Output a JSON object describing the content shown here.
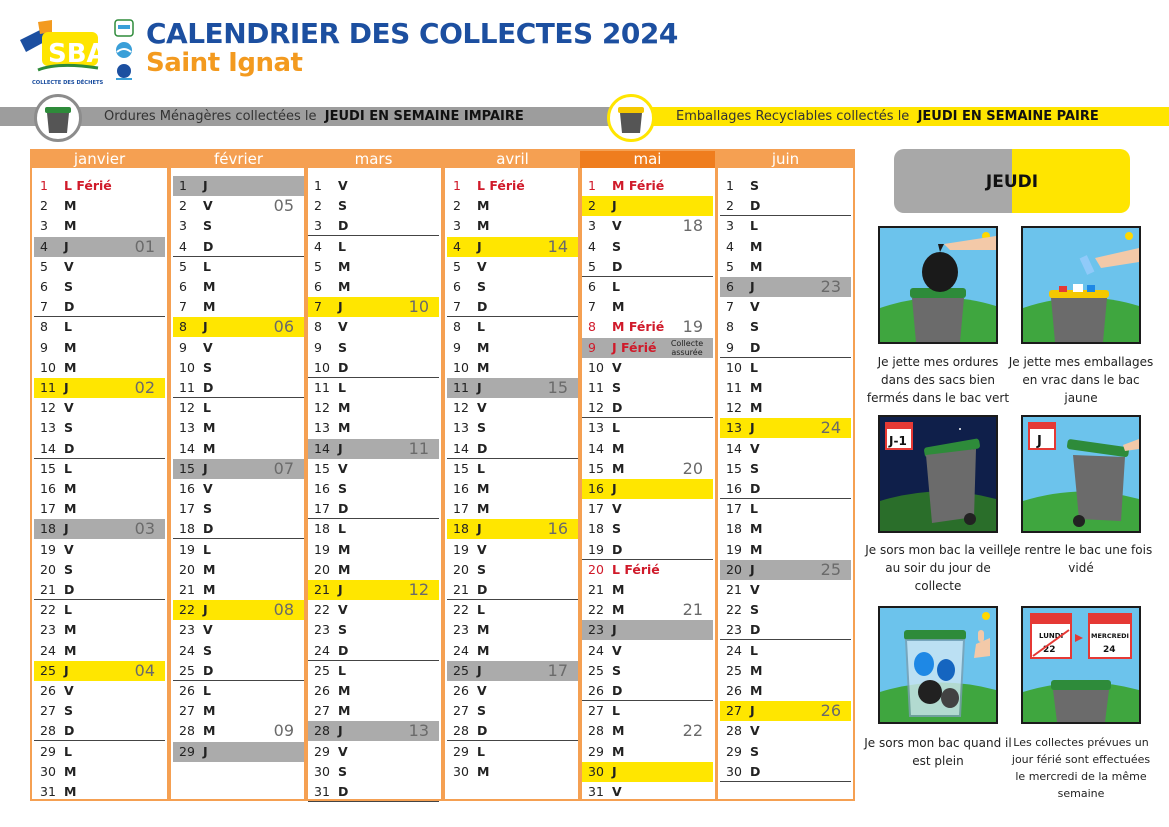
{
  "header": {
    "title": "CALENDRIER DES COLLECTES 2024",
    "subtitle": "Saint Ignat",
    "logo_text": "SBA",
    "logo_tagline": "COLLECTE DES DÉCHETS"
  },
  "banner": {
    "left_text": "Ordures Ménagères collectées le",
    "left_bold": "JEUDI EN SEMAINE IMPAIRE",
    "right_text": "Emballages Recyclables collectés le",
    "right_bold": "JEUDI EN SEMAINE PAIRE"
  },
  "colors": {
    "title_blue": "#1c4fa0",
    "subtitle_orange": "#f39a1f",
    "month_border": "#f5a052",
    "grey_collection": "#ababab",
    "yellow_collection": "#ffe600",
    "ferie_red": "#d01a2a",
    "bin_lid_green": "#2e8b3a"
  },
  "months": [
    {
      "name": "janvier",
      "days": [
        {
          "n": "1",
          "l": "L",
          "ferie": "Férié"
        },
        {
          "n": "2",
          "l": "M"
        },
        {
          "n": "3",
          "l": "M"
        },
        {
          "n": "4",
          "l": "J",
          "hl": "grey",
          "week": "01"
        },
        {
          "n": "5",
          "l": "V"
        },
        {
          "n": "6",
          "l": "S"
        },
        {
          "n": "7",
          "l": "D"
        },
        {
          "n": "8",
          "l": "L"
        },
        {
          "n": "9",
          "l": "M"
        },
        {
          "n": "10",
          "l": "M"
        },
        {
          "n": "11",
          "l": "J",
          "hl": "yellow",
          "week": "02"
        },
        {
          "n": "12",
          "l": "V"
        },
        {
          "n": "13",
          "l": "S"
        },
        {
          "n": "14",
          "l": "D"
        },
        {
          "n": "15",
          "l": "L"
        },
        {
          "n": "16",
          "l": "M"
        },
        {
          "n": "17",
          "l": "M"
        },
        {
          "n": "18",
          "l": "J",
          "hl": "grey",
          "week": "03"
        },
        {
          "n": "19",
          "l": "V"
        },
        {
          "n": "20",
          "l": "S"
        },
        {
          "n": "21",
          "l": "D"
        },
        {
          "n": "22",
          "l": "L"
        },
        {
          "n": "23",
          "l": "M"
        },
        {
          "n": "24",
          "l": "M"
        },
        {
          "n": "25",
          "l": "J",
          "hl": "yellow",
          "week": "04"
        },
        {
          "n": "26",
          "l": "V"
        },
        {
          "n": "27",
          "l": "S"
        },
        {
          "n": "28",
          "l": "D"
        },
        {
          "n": "29",
          "l": "L"
        },
        {
          "n": "30",
          "l": "M"
        },
        {
          "n": "31",
          "l": "M"
        }
      ]
    },
    {
      "name": "février",
      "days": [
        {
          "n": "1",
          "l": "J",
          "hl": "grey"
        },
        {
          "n": "2",
          "l": "V",
          "week": "05"
        },
        {
          "n": "3",
          "l": "S"
        },
        {
          "n": "4",
          "l": "D"
        },
        {
          "n": "5",
          "l": "L"
        },
        {
          "n": "6",
          "l": "M"
        },
        {
          "n": "7",
          "l": "M"
        },
        {
          "n": "8",
          "l": "J",
          "hl": "yellow",
          "week": "06"
        },
        {
          "n": "9",
          "l": "V"
        },
        {
          "n": "10",
          "l": "S"
        },
        {
          "n": "11",
          "l": "D"
        },
        {
          "n": "12",
          "l": "L"
        },
        {
          "n": "13",
          "l": "M"
        },
        {
          "n": "14",
          "l": "M"
        },
        {
          "n": "15",
          "l": "J",
          "hl": "grey",
          "week": "07"
        },
        {
          "n": "16",
          "l": "V"
        },
        {
          "n": "17",
          "l": "S"
        },
        {
          "n": "18",
          "l": "D"
        },
        {
          "n": "19",
          "l": "L"
        },
        {
          "n": "20",
          "l": "M"
        },
        {
          "n": "21",
          "l": "M"
        },
        {
          "n": "22",
          "l": "J",
          "hl": "yellow",
          "week": "08"
        },
        {
          "n": "23",
          "l": "V"
        },
        {
          "n": "24",
          "l": "S"
        },
        {
          "n": "25",
          "l": "D"
        },
        {
          "n": "26",
          "l": "L"
        },
        {
          "n": "27",
          "l": "M"
        },
        {
          "n": "28",
          "l": "M",
          "week": "09"
        },
        {
          "n": "29",
          "l": "J",
          "hl": "grey"
        }
      ]
    },
    {
      "name": "mars",
      "days": [
        {
          "n": "1",
          "l": "V"
        },
        {
          "n": "2",
          "l": "S"
        },
        {
          "n": "3",
          "l": "D"
        },
        {
          "n": "4",
          "l": "L"
        },
        {
          "n": "5",
          "l": "M"
        },
        {
          "n": "6",
          "l": "M"
        },
        {
          "n": "7",
          "l": "J",
          "hl": "yellow",
          "week": "10"
        },
        {
          "n": "8",
          "l": "V"
        },
        {
          "n": "9",
          "l": "S"
        },
        {
          "n": "10",
          "l": "D"
        },
        {
          "n": "11",
          "l": "L"
        },
        {
          "n": "12",
          "l": "M"
        },
        {
          "n": "13",
          "l": "M"
        },
        {
          "n": "14",
          "l": "J",
          "hl": "grey",
          "week": "11"
        },
        {
          "n": "15",
          "l": "V"
        },
        {
          "n": "16",
          "l": "S"
        },
        {
          "n": "17",
          "l": "D"
        },
        {
          "n": "18",
          "l": "L"
        },
        {
          "n": "19",
          "l": "M"
        },
        {
          "n": "20",
          "l": "M"
        },
        {
          "n": "21",
          "l": "J",
          "hl": "yellow",
          "week": "12"
        },
        {
          "n": "22",
          "l": "V"
        },
        {
          "n": "23",
          "l": "S"
        },
        {
          "n": "24",
          "l": "D"
        },
        {
          "n": "25",
          "l": "L"
        },
        {
          "n": "26",
          "l": "M"
        },
        {
          "n": "27",
          "l": "M"
        },
        {
          "n": "28",
          "l": "J",
          "hl": "grey",
          "week": "13"
        },
        {
          "n": "29",
          "l": "V"
        },
        {
          "n": "30",
          "l": "S"
        },
        {
          "n": "31",
          "l": "D"
        }
      ]
    },
    {
      "name": "avril",
      "days": [
        {
          "n": "1",
          "l": "L",
          "ferie": "Férié"
        },
        {
          "n": "2",
          "l": "M"
        },
        {
          "n": "3",
          "l": "M"
        },
        {
          "n": "4",
          "l": "J",
          "hl": "yellow",
          "week": "14"
        },
        {
          "n": "5",
          "l": "V"
        },
        {
          "n": "6",
          "l": "S"
        },
        {
          "n": "7",
          "l": "D"
        },
        {
          "n": "8",
          "l": "L"
        },
        {
          "n": "9",
          "l": "M"
        },
        {
          "n": "10",
          "l": "M"
        },
        {
          "n": "11",
          "l": "J",
          "hl": "grey",
          "week": "15"
        },
        {
          "n": "12",
          "l": "V"
        },
        {
          "n": "13",
          "l": "S"
        },
        {
          "n": "14",
          "l": "D"
        },
        {
          "n": "15",
          "l": "L"
        },
        {
          "n": "16",
          "l": "M"
        },
        {
          "n": "17",
          "l": "M"
        },
        {
          "n": "18",
          "l": "J",
          "hl": "yellow",
          "week": "16"
        },
        {
          "n": "19",
          "l": "V"
        },
        {
          "n": "20",
          "l": "S"
        },
        {
          "n": "21",
          "l": "D"
        },
        {
          "n": "22",
          "l": "L"
        },
        {
          "n": "23",
          "l": "M"
        },
        {
          "n": "24",
          "l": "M"
        },
        {
          "n": "25",
          "l": "J",
          "hl": "grey",
          "week": "17"
        },
        {
          "n": "26",
          "l": "V"
        },
        {
          "n": "27",
          "l": "S"
        },
        {
          "n": "28",
          "l": "D"
        },
        {
          "n": "29",
          "l": "L"
        },
        {
          "n": "30",
          "l": "M"
        }
      ]
    },
    {
      "name": "mai",
      "dark": true,
      "days": [
        {
          "n": "1",
          "l": "M",
          "ferie": "Férié"
        },
        {
          "n": "2",
          "l": "J",
          "hl": "yellow"
        },
        {
          "n": "3",
          "l": "V",
          "week": "18"
        },
        {
          "n": "4",
          "l": "S"
        },
        {
          "n": "5",
          "l": "D"
        },
        {
          "n": "6",
          "l": "L"
        },
        {
          "n": "7",
          "l": "M"
        },
        {
          "n": "8",
          "l": "M",
          "ferie": "Férié",
          "week": "19"
        },
        {
          "n": "9",
          "l": "J",
          "ferie": "Férié",
          "hl": "grey",
          "note": "Collecte assurée"
        },
        {
          "n": "10",
          "l": "V"
        },
        {
          "n": "11",
          "l": "S"
        },
        {
          "n": "12",
          "l": "D"
        },
        {
          "n": "13",
          "l": "L"
        },
        {
          "n": "14",
          "l": "M"
        },
        {
          "n": "15",
          "l": "M",
          "week": "20"
        },
        {
          "n": "16",
          "l": "J",
          "hl": "yellow"
        },
        {
          "n": "17",
          "l": "V"
        },
        {
          "n": "18",
          "l": "S"
        },
        {
          "n": "19",
          "l": "D"
        },
        {
          "n": "20",
          "l": "L",
          "ferie": "Férié"
        },
        {
          "n": "21",
          "l": "M"
        },
        {
          "n": "22",
          "l": "M",
          "week": "21"
        },
        {
          "n": "23",
          "l": "J",
          "hl": "grey"
        },
        {
          "n": "24",
          "l": "V"
        },
        {
          "n": "25",
          "l": "S"
        },
        {
          "n": "26",
          "l": "D"
        },
        {
          "n": "27",
          "l": "L"
        },
        {
          "n": "28",
          "l": "M",
          "week": "22"
        },
        {
          "n": "29",
          "l": "M"
        },
        {
          "n": "30",
          "l": "J",
          "hl": "yellow"
        },
        {
          "n": "31",
          "l": "V"
        }
      ]
    },
    {
      "name": "juin",
      "days": [
        {
          "n": "1",
          "l": "S"
        },
        {
          "n": "2",
          "l": "D"
        },
        {
          "n": "3",
          "l": "L"
        },
        {
          "n": "4",
          "l": "M"
        },
        {
          "n": "5",
          "l": "M"
        },
        {
          "n": "6",
          "l": "J",
          "hl": "grey",
          "week": "23"
        },
        {
          "n": "7",
          "l": "V"
        },
        {
          "n": "8",
          "l": "S"
        },
        {
          "n": "9",
          "l": "D"
        },
        {
          "n": "10",
          "l": "L"
        },
        {
          "n": "11",
          "l": "M"
        },
        {
          "n": "12",
          "l": "M"
        },
        {
          "n": "13",
          "l": "J",
          "hl": "yellow",
          "week": "24"
        },
        {
          "n": "14",
          "l": "V"
        },
        {
          "n": "15",
          "l": "S"
        },
        {
          "n": "16",
          "l": "D"
        },
        {
          "n": "17",
          "l": "L"
        },
        {
          "n": "18",
          "l": "M"
        },
        {
          "n": "19",
          "l": "M"
        },
        {
          "n": "20",
          "l": "J",
          "hl": "grey",
          "week": "25"
        },
        {
          "n": "21",
          "l": "V"
        },
        {
          "n": "22",
          "l": "S"
        },
        {
          "n": "23",
          "l": "D"
        },
        {
          "n": "24",
          "l": "L"
        },
        {
          "n": "25",
          "l": "M"
        },
        {
          "n": "26",
          "l": "M"
        },
        {
          "n": "27",
          "l": "J",
          "hl": "yellow",
          "week": "26"
        },
        {
          "n": "28",
          "l": "V"
        },
        {
          "n": "29",
          "l": "S"
        },
        {
          "n": "30",
          "l": "D"
        }
      ]
    }
  ],
  "panel": {
    "day_label": "JEUDI",
    "tips": [
      {
        "caption": "Je jette mes ordures dans des sacs bien fermés dans le bac vert",
        "icon": "garbage-bag-green-bin-icon"
      },
      {
        "caption": "Je jette mes emballages en vrac dans le bac jaune",
        "icon": "recycling-yellow-bin-icon"
      },
      {
        "caption": "Je sors mon bac la veille au soir du jour de collecte",
        "icon": "night-bin-out-icon",
        "badge": "J-1"
      },
      {
        "caption": "Je rentre le bac une fois vidé",
        "icon": "day-bin-in-icon",
        "badge": "J"
      },
      {
        "caption": "Je sors mon bac quand il est plein",
        "icon": "full-bin-thumbs-up-icon"
      },
      {
        "caption": "Les collectes prévues un jour férié sont effectuées le mercredi de la même semaine",
        "icon": "holiday-calendar-icon",
        "cal_left_day": "LUNDI",
        "cal_left_num": "22",
        "cal_right_day": "MERCREDI",
        "cal_right_num": "24"
      }
    ]
  }
}
